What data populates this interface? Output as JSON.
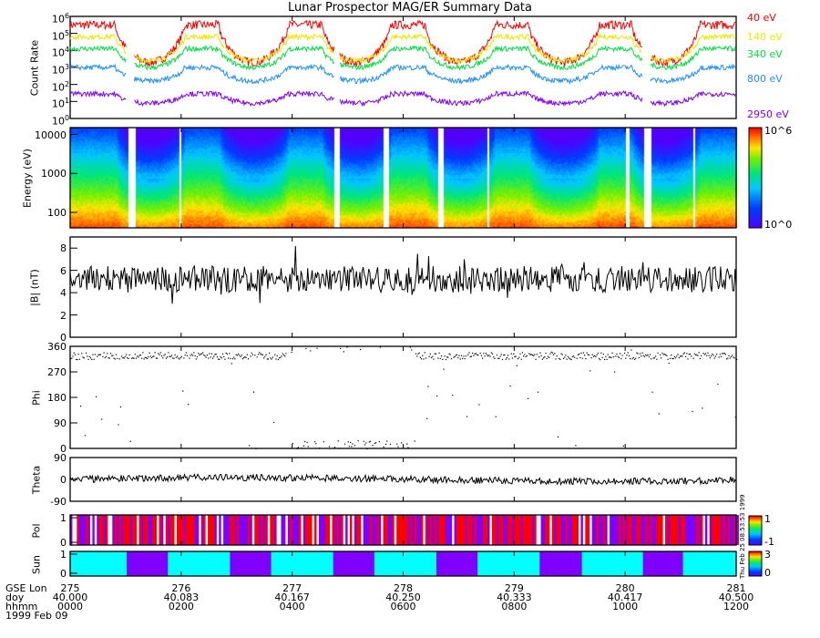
{
  "title": "Lunar Prospector MAG/ER Summary Data",
  "stamp": "Thu Feb 25 08:53:53 1999",
  "chart_data": [
    {
      "type": "line",
      "name": "count-rate",
      "ylabel": "Count Rate",
      "yscale": "log",
      "ylim": [
        1,
        1000000
      ],
      "yticks": [
        "10^0",
        "10^1",
        "10^2",
        "10^3",
        "10^4",
        "10^5",
        "10^6"
      ],
      "legend": "right",
      "series": [
        {
          "name": "40 eV",
          "color": "#ff0000",
          "sun_log": 5.5,
          "shadow_log": 3.3
        },
        {
          "name": "140 eV",
          "color": "#e8e800",
          "sun_log": 4.8,
          "shadow_log": 3.4
        },
        {
          "name": "340 eV",
          "color": "#00e040",
          "sun_log": 4.1,
          "shadow_log": 3.0
        },
        {
          "name": "800 eV",
          "color": "#1f90ff",
          "sun_log": 3.0,
          "shadow_log": 2.2
        },
        {
          "name": "2950 eV",
          "color": "#8000ff",
          "sun_log": 1.45,
          "shadow_log": 0.9
        }
      ]
    },
    {
      "type": "heatmap",
      "name": "energy-spectrogram",
      "ylabel": "Energy (eV)",
      "yscale": "log",
      "ylim": [
        40,
        15000
      ],
      "yticks": [
        "100",
        "1000",
        "10000"
      ],
      "colorbar": {
        "min": "10^0",
        "max": "10^6"
      },
      "gaps_hours": [
        [
          1.02,
          1.15
        ],
        [
          1.94,
          2.0
        ],
        [
          4.76,
          4.85
        ],
        [
          5.64,
          5.72
        ],
        [
          6.6,
          6.72
        ],
        [
          7.5,
          7.55
        ],
        [
          10.0,
          10.05
        ],
        [
          10.32,
          10.45
        ],
        [
          11.2,
          11.25
        ]
      ]
    },
    {
      "type": "line",
      "name": "field-magnitude",
      "ylabel": "|B| (nT)",
      "ylim": [
        0,
        9
      ],
      "yticks": [
        "0",
        "2",
        "4",
        "6",
        "8"
      ],
      "mean": 5.2,
      "spread": 1.0
    },
    {
      "type": "scatter",
      "name": "phi",
      "ylabel": "Phi",
      "ylim": [
        0,
        360
      ],
      "yticks": [
        "0",
        "90",
        "180",
        "270",
        "360"
      ]
    },
    {
      "type": "line",
      "name": "theta",
      "ylabel": "Theta",
      "ylim": [
        -90,
        90
      ],
      "yticks": [
        "-90",
        "0",
        "90"
      ]
    },
    {
      "type": "heatmap",
      "name": "polarity",
      "ylabel": "Pol",
      "ylim": [
        0,
        1
      ],
      "yticks": [
        "0",
        "1"
      ],
      "colorbar": {
        "min": "-1",
        "max": "1"
      },
      "colors": {
        "positive": "#ff0000",
        "negative": "#8000ff",
        "none": "#ffffff"
      }
    },
    {
      "type": "heatmap",
      "name": "sun",
      "ylabel": "Sun",
      "ylim": [
        0,
        1
      ],
      "yticks": [
        "0",
        "1"
      ],
      "colorbar": {
        "min": "0",
        "max": "3"
      },
      "colors": {
        "sun": "#00ffff",
        "shadow": "#8000ff"
      },
      "shadow_hours": [
        [
          1.02,
          1.76
        ],
        [
          2.88,
          3.62
        ],
        [
          4.74,
          5.48
        ],
        [
          6.6,
          7.34
        ],
        [
          8.46,
          9.22
        ],
        [
          10.32,
          11.04
        ]
      ]
    }
  ],
  "xaxis": {
    "row_labels": [
      "GSE Lon",
      "doy",
      "hhmm"
    ],
    "date": "1999 Feb 09",
    "xlim_hours": [
      0,
      12
    ],
    "ticks": [
      {
        "hour": 0,
        "lon": "275",
        "doy": "40.000",
        "hhmm": "0000"
      },
      {
        "hour": 2,
        "lon": "276",
        "doy": "40.083",
        "hhmm": "0200"
      },
      {
        "hour": 4,
        "lon": "277",
        "doy": "40.167",
        "hhmm": "0400"
      },
      {
        "hour": 6,
        "lon": "278",
        "doy": "40.250",
        "hhmm": "0600"
      },
      {
        "hour": 8,
        "lon": "279",
        "doy": "40.333",
        "hhmm": "0800"
      },
      {
        "hour": 10,
        "lon": "280",
        "doy": "40.417",
        "hhmm": "1000"
      },
      {
        "hour": 12,
        "lon": "281",
        "doy": "40.500",
        "hhmm": "1200"
      }
    ]
  }
}
